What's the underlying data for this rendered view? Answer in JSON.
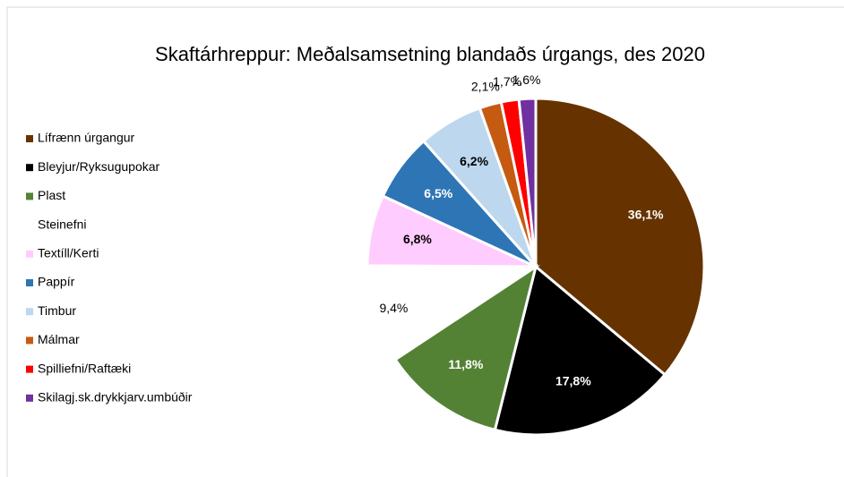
{
  "chart_data": {
    "type": "pie",
    "title": "Skaftárhreppur: Meðalsamsetning blandaðs úrgangs, des 2020",
    "categories": [
      "Lífrænn úrgangur",
      "Bleyjur/Ryksugupokar",
      "Plast",
      "Steinefni",
      "Textíll/Kerti",
      "Pappír",
      "Timbur",
      "Málmar",
      "Spilliefni/Raftæki",
      "Skilagj.sk.drykkjarv.umbúðir"
    ],
    "values": [
      36.1,
      17.8,
      11.8,
      9.4,
      6.8,
      6.5,
      6.2,
      2.1,
      1.7,
      1.6
    ],
    "value_labels": [
      "36,1%",
      "17,8%",
      "11,8%",
      "9,4%",
      "6,8%",
      "6,5%",
      "6,2%",
      "2,1%",
      "1,7%",
      "1,6%"
    ],
    "colors": [
      "#663300",
      "#000000",
      "#548235",
      "#ffffff",
      "#ffccff",
      "#2e75b6",
      "#bdd7ee",
      "#c55a11",
      "#ff0000",
      "#7030a0"
    ],
    "legend": "left"
  }
}
